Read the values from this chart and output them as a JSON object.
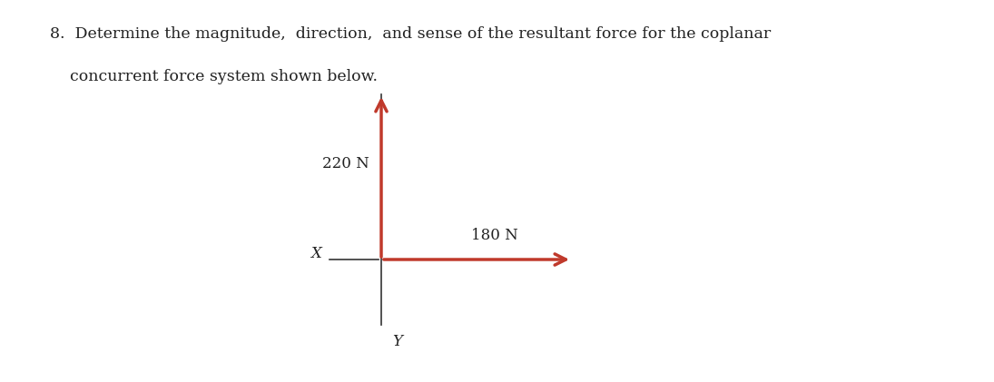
{
  "title_line1": "8.  Determine the magnitude,  direction,  and sense of the resultant force for the coplanar",
  "title_line2": "    concurrent force system shown below.",
  "title_fontsize": 12.5,
  "title_fontfamily": "DejaVu Serif",
  "bg_color": "#ffffff",
  "arrow_color": "#c0392b",
  "axis_line_color": "#444444",
  "force_up_label": "220 N",
  "force_right_label": "180 N",
  "x_label": "X",
  "y_label": "Y",
  "label_fontsize": 12,
  "label_fontfamily": "DejaVu Serif",
  "fig_width": 10.95,
  "fig_height": 4.21,
  "dpi": 100
}
